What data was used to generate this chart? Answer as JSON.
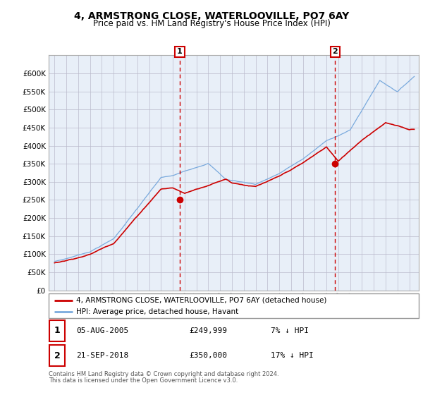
{
  "title": "4, ARMSTRONG CLOSE, WATERLOOVILLE, PO7 6AY",
  "subtitle": "Price paid vs. HM Land Registry's House Price Index (HPI)",
  "legend_line1": "4, ARMSTRONG CLOSE, WATERLOOVILLE, PO7 6AY (detached house)",
  "legend_line2": "HPI: Average price, detached house, Havant",
  "footnote1": "Contains HM Land Registry data © Crown copyright and database right 2024.",
  "footnote2": "This data is licensed under the Open Government Licence v3.0.",
  "sale1_date": "05-AUG-2005",
  "sale1_price": "£249,999",
  "sale1_hpi": "7% ↓ HPI",
  "sale2_date": "21-SEP-2018",
  "sale2_price": "£350,000",
  "sale2_hpi": "17% ↓ HPI",
  "sale1_x": 2005.59,
  "sale1_y": 249999,
  "sale2_x": 2018.72,
  "sale2_y": 350000,
  "hpi_color": "#7aaadd",
  "price_color": "#cc0000",
  "bg_color": "#e8eff8",
  "grid_color": "#cccccc",
  "dashed_color": "#cc0000",
  "ylim": [
    0,
    650000
  ],
  "yticks": [
    0,
    50000,
    100000,
    150000,
    200000,
    250000,
    300000,
    350000,
    400000,
    450000,
    500000,
    550000,
    600000
  ],
  "xlim_start": 1994.5,
  "xlim_end": 2025.8
}
